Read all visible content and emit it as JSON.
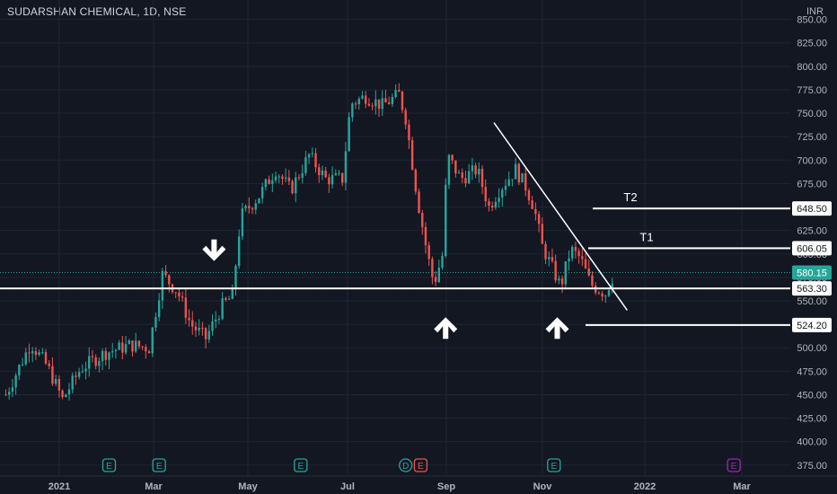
{
  "title": "SUDARSHAN CHEMICAL, 1D, NSE",
  "currency": "INR",
  "colors": {
    "background": "#131722",
    "grid": "#1f2433",
    "axis_text": "#b2b5be",
    "up": "#26a69a",
    "down": "#ef5350",
    "annotation": "#ffffff",
    "last_price_tag": "#26a69a",
    "earnings_marker": "#26a69a",
    "dividend_marker": "#ef5350",
    "future_earnings_marker": "#9c27b0"
  },
  "chart_data": {
    "type": "candlestick",
    "y_axis": {
      "range": [
        365,
        855
      ],
      "ticks": [
        375,
        400,
        425,
        450,
        475,
        500,
        525,
        550,
        575,
        600,
        625,
        650,
        675,
        700,
        725,
        750,
        775,
        800,
        825,
        850
      ],
      "tick_labels": [
        "375.00",
        "400.00",
        "425.00",
        "450.00",
        "475.00",
        "500.00",
        "525.00",
        "550.00",
        "575.00",
        "600.00",
        "625.00",
        "650.00",
        "675.00",
        "700.00",
        "725.00",
        "750.00",
        "775.00",
        "800.00",
        "825.00",
        "850.00"
      ]
    },
    "x_axis": {
      "labels": [
        "2021",
        "Mar",
        "May",
        "Jul",
        "Sep",
        "Nov",
        "2022",
        "Mar"
      ]
    },
    "price_series": {
      "name": "SUDARSHAN CHEMICAL",
      "points": [
        {
          "t": 0.0,
          "p": 450
        },
        {
          "t": 1.5,
          "p": 505
        },
        {
          "t": 2.5,
          "p": 480
        },
        {
          "t": 3.4,
          "p": 445
        },
        {
          "t": 4.5,
          "p": 478
        },
        {
          "t": 6.0,
          "p": 495
        },
        {
          "t": 7.5,
          "p": 503
        },
        {
          "t": 8.6,
          "p": 500
        },
        {
          "t": 9.4,
          "p": 578
        },
        {
          "t": 10.3,
          "p": 560
        },
        {
          "t": 11.1,
          "p": 525
        },
        {
          "t": 12.0,
          "p": 510
        },
        {
          "t": 13.0,
          "p": 545
        },
        {
          "t": 13.6,
          "p": 555
        },
        {
          "t": 14.1,
          "p": 640
        },
        {
          "t": 15.2,
          "p": 662
        },
        {
          "t": 16.2,
          "p": 690
        },
        {
          "t": 17.1,
          "p": 668
        },
        {
          "t": 18.2,
          "p": 705
        },
        {
          "t": 19.2,
          "p": 680
        },
        {
          "t": 20.2,
          "p": 680
        },
        {
          "t": 20.7,
          "p": 760
        },
        {
          "t": 21.6,
          "p": 768
        },
        {
          "t": 22.6,
          "p": 758
        },
        {
          "t": 23.6,
          "p": 770
        },
        {
          "t": 24.0,
          "p": 745
        },
        {
          "t": 24.7,
          "p": 660
        },
        {
          "t": 25.3,
          "p": 600
        },
        {
          "t": 25.7,
          "p": 568
        },
        {
          "t": 26.2,
          "p": 598
        },
        {
          "t": 26.5,
          "p": 705
        },
        {
          "t": 27.3,
          "p": 680
        },
        {
          "t": 28.3,
          "p": 690
        },
        {
          "t": 29.0,
          "p": 650
        },
        {
          "t": 29.6,
          "p": 668
        },
        {
          "t": 30.6,
          "p": 690
        },
        {
          "t": 31.2,
          "p": 672
        },
        {
          "t": 31.7,
          "p": 650
        },
        {
          "t": 32.2,
          "p": 608
        },
        {
          "t": 32.8,
          "p": 585
        },
        {
          "t": 33.3,
          "p": 565
        },
        {
          "t": 33.9,
          "p": 605
        },
        {
          "t": 34.5,
          "p": 595
        },
        {
          "t": 35.1,
          "p": 568
        },
        {
          "t": 35.6,
          "p": 562
        },
        {
          "t": 36.0,
          "p": 558
        },
        {
          "t": 36.4,
          "p": 575
        },
        {
          "t": 36.5,
          "p": 580.15
        }
      ]
    },
    "horizontal_levels": [
      {
        "label": "648.50",
        "value": 648.5,
        "text": "T2"
      },
      {
        "label": "606.05",
        "value": 606.05,
        "text": "T1"
      },
      {
        "label": "563.30",
        "value": 563.3,
        "text": ""
      },
      {
        "label": "524.20",
        "value": 524.2,
        "text": ""
      }
    ],
    "last_price": {
      "value": 580.15,
      "label": "580.15"
    },
    "trendline": {
      "from": {
        "t": 29.3,
        "p": 740
      },
      "to": {
        "t": 37.3,
        "p": 540
      }
    },
    "support_arrows": [
      {
        "t": 26.4,
        "p": 522,
        "direction": "up"
      },
      {
        "t": 33.1,
        "p": 522,
        "direction": "up"
      }
    ],
    "resistance_arrows": [
      {
        "t": 12.5,
        "p": 603,
        "direction": "down"
      }
    ],
    "event_markers": [
      {
        "letter": "E",
        "t": 6.2,
        "kind": "earnings"
      },
      {
        "letter": "E",
        "t": 9.2,
        "kind": "earnings"
      },
      {
        "letter": "E",
        "t": 17.7,
        "kind": "earnings"
      },
      {
        "letter": "D",
        "t": 24.0,
        "kind": "dividend"
      },
      {
        "letter": "E",
        "t": 24.9,
        "kind": "dividend"
      },
      {
        "letter": "E",
        "t": 32.9,
        "kind": "earnings"
      },
      {
        "letter": "E",
        "t": 43.7,
        "kind": "future_earnings"
      }
    ],
    "grid": true
  }
}
